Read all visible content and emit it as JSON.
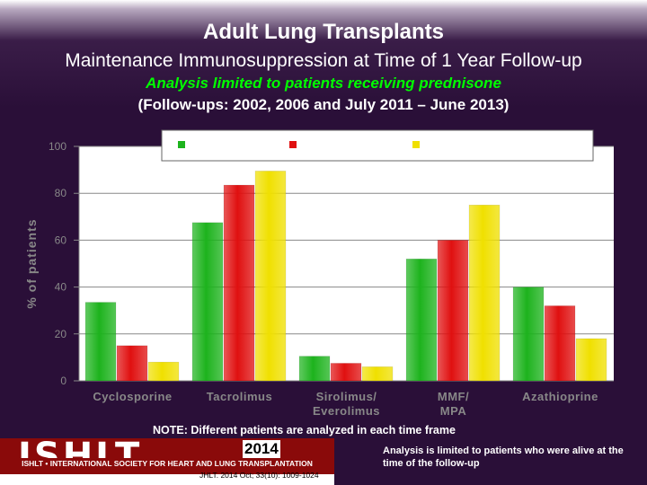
{
  "title": "Adult Lung Transplants",
  "subtitle": "Maintenance Immunosuppression at Time of 1 Year Follow-up",
  "analysis_note": "Analysis limited to patients receiving prednisone",
  "period_note": "(Follow-ups: 2002, 2006 and July 2011 – June 2013)",
  "note": "NOTE: Different patients are analyzed in each time frame",
  "side_note": "Analysis is limited to patients who were alive at the time of the follow-up",
  "footer": {
    "logo": "ISHLT",
    "org": "ISHLT • INTERNATIONAL SOCIETY FOR HEART AND LUNG TRANSPLANTATION",
    "year": "2014",
    "citation": "JHLT. 2014 Oct; 33(10): 1009-1024"
  },
  "colors": {
    "series1": "#1db31d",
    "series2": "#e01010",
    "series3": "#f0e000",
    "axis": "#888888"
  },
  "chart_data": {
    "type": "bar",
    "ylabel": "% of patients",
    "ylim": [
      0,
      100
    ],
    "yticks": [
      0,
      20,
      40,
      60,
      80,
      100
    ],
    "categories": [
      [
        "Cyclosporine"
      ],
      [
        "Tacrolimus"
      ],
      [
        "Sirolimus/",
        "Everolimus"
      ],
      [
        "MMF/",
        "MPA"
      ],
      [
        "Azathioprine"
      ]
    ],
    "series": [
      {
        "name": "",
        "values": [
          33.5,
          67.5,
          10.5,
          52,
          40
        ]
      },
      {
        "name": "",
        "values": [
          15,
          83.5,
          7.5,
          60,
          32
        ]
      },
      {
        "name": "",
        "values": [
          8,
          89.5,
          6,
          75,
          18
        ]
      }
    ],
    "legend_position": "top"
  }
}
